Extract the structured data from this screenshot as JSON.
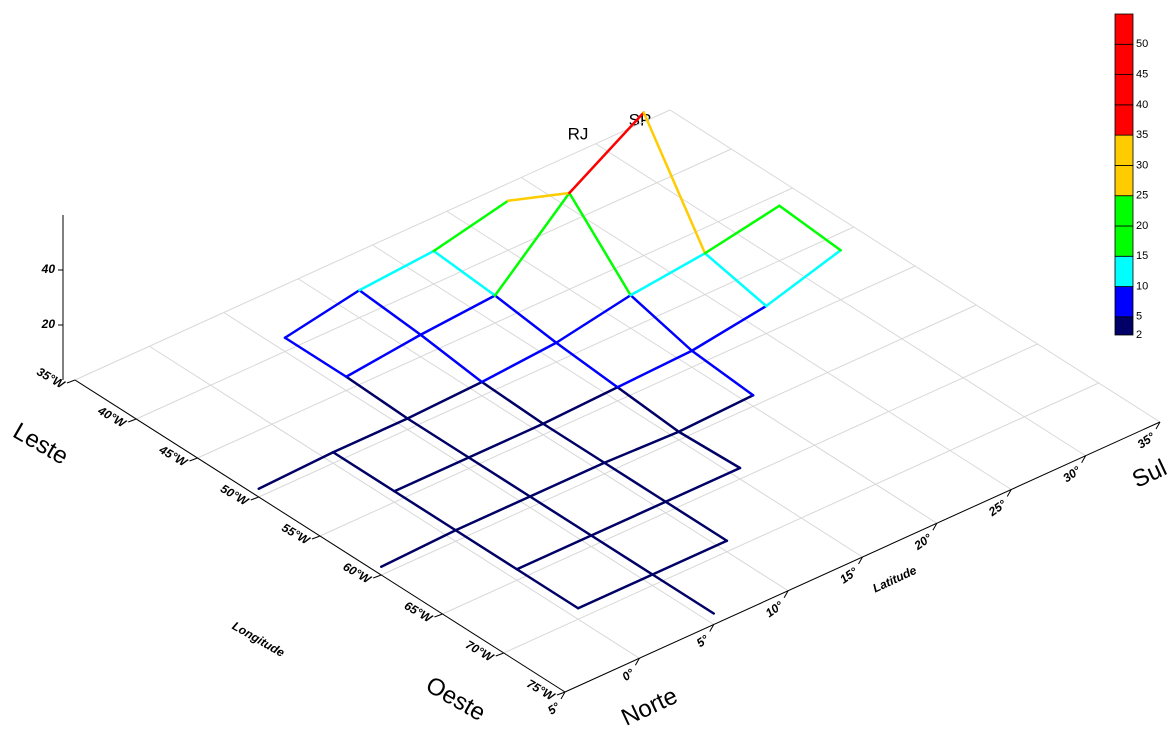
{
  "chart_data": {
    "type": "surface3d",
    "x_label": "Longitude",
    "y_label": "Latitude",
    "direction_labels": {
      "west_low": "Leste",
      "west_high": "Oeste",
      "north": "Norte",
      "south": "Sul"
    },
    "annotations": [
      {
        "text": "RJ"
      },
      {
        "text": "SP"
      }
    ],
    "x": [
      -75,
      -70,
      -65,
      -60,
      -55,
      -50,
      -45,
      -40,
      -35
    ],
    "y": [
      -5,
      0,
      5,
      10,
      15,
      20,
      25,
      30,
      35
    ],
    "z": [
      [
        null,
        null,
        null,
        3,
        null,
        3,
        null,
        null,
        null
      ],
      [
        null,
        4,
        4,
        4,
        4,
        4,
        null,
        null,
        null
      ],
      [
        4,
        4,
        4,
        4,
        4,
        4,
        5,
        5,
        null
      ],
      [
        null,
        4,
        4,
        4,
        4,
        5,
        8,
        10,
        null
      ],
      [
        null,
        null,
        4,
        3,
        5,
        7,
        10,
        12,
        null
      ],
      [
        null,
        null,
        null,
        4,
        6,
        12,
        35,
        18,
        null
      ],
      [
        null,
        null,
        null,
        null,
        10,
        15,
        52,
        null,
        null
      ],
      [
        null,
        null,
        null,
        null,
        18,
        20,
        null,
        null,
        null
      ],
      [
        null,
        null,
        null,
        null,
        null,
        null,
        null,
        null,
        null
      ]
    ],
    "xlim": [
      -35,
      -75
    ],
    "ylim": [
      -5,
      35
    ],
    "zlim": [
      0,
      60
    ],
    "xticks": [
      {
        "value": -35,
        "label": "35°W"
      },
      {
        "value": -40,
        "label": "40°W"
      },
      {
        "value": -45,
        "label": "45°W"
      },
      {
        "value": -50,
        "label": "50°W"
      },
      {
        "value": -55,
        "label": "55°W"
      },
      {
        "value": -60,
        "label": "60°W"
      },
      {
        "value": -65,
        "label": "65°W"
      },
      {
        "value": -70,
        "label": "70°W"
      },
      {
        "value": -75,
        "label": "75°W"
      }
    ],
    "yticks": [
      {
        "value": -5,
        "label": "5°"
      },
      {
        "value": 0,
        "label": "0°"
      },
      {
        "value": 5,
        "label": "5°"
      },
      {
        "value": 10,
        "label": "10°"
      },
      {
        "value": 15,
        "label": "15°"
      },
      {
        "value": 20,
        "label": "20°"
      },
      {
        "value": 25,
        "label": "25°"
      },
      {
        "value": 30,
        "label": "30°"
      },
      {
        "value": 35,
        "label": "35°"
      }
    ],
    "zticks": [
      20,
      40
    ],
    "colorbar": {
      "lim": [
        2,
        55
      ],
      "ticks": [
        2,
        5,
        10,
        15,
        20,
        25,
        30,
        35,
        40,
        45,
        50
      ],
      "colors": [
        "#000066",
        "#0000ff",
        "#00ffff",
        "#00ff00",
        "#00ff00",
        "#ffcc00",
        "#ffcc00",
        "#ff0000",
        "#ff0000",
        "#ff0000",
        "#ff0000"
      ]
    }
  }
}
